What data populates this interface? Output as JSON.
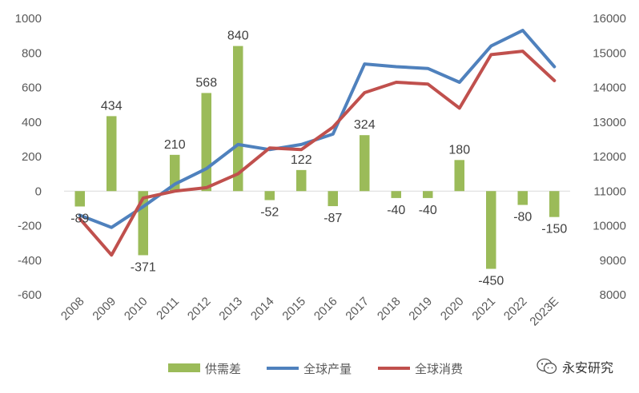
{
  "chart_data": {
    "type": "bar+line",
    "categories": [
      "2008",
      "2009",
      "2010",
      "2011",
      "2012",
      "2013",
      "2014",
      "2015",
      "2016",
      "2017",
      "2018",
      "2019",
      "2020",
      "2021",
      "2022",
      "2023E"
    ],
    "bar_series": {
      "name": "供需差",
      "axis": "left",
      "values": [
        -89,
        434,
        -371,
        210,
        568,
        840,
        -52,
        122,
        -87,
        324,
        -40,
        -40,
        180,
        -450,
        -80,
        -150
      ],
      "color": "#9BBB59"
    },
    "line_series": [
      {
        "name": "全球产量",
        "axis": "right",
        "color": "#4F81BD",
        "values": [
          10300,
          9950,
          10550,
          11200,
          11650,
          12350,
          12200,
          12350,
          12650,
          14680,
          14600,
          14550,
          14150,
          15200,
          15650,
          14600
        ]
      },
      {
        "name": "全球消费",
        "axis": "right",
        "color": "#C0504D",
        "values": [
          10200,
          9150,
          10800,
          11000,
          11100,
          11500,
          12250,
          12200,
          12850,
          13850,
          14150,
          14100,
          13400,
          14950,
          15050,
          14200
        ]
      }
    ],
    "left_axis": {
      "min": -600,
      "max": 1000,
      "step": 200,
      "ticks": [
        "1000",
        "800",
        "600",
        "400",
        "200",
        "0",
        "-200",
        "-400",
        "-600"
      ]
    },
    "right_axis": {
      "min": 8000,
      "max": 16000,
      "step": 1000,
      "ticks": [
        "16000",
        "15000",
        "14000",
        "13000",
        "12000",
        "11000",
        "10000",
        "9000",
        "8000"
      ]
    },
    "data_labels": [
      "-89",
      "434",
      "-371",
      "210",
      "568",
      "840",
      "-52",
      "122",
      "-87",
      "324",
      "-40",
      "-40",
      "180",
      "-450",
      "-80",
      "-150"
    ],
    "legend": {
      "position": "bottom",
      "items": [
        {
          "label": "供需差",
          "color": "#9BBB59",
          "kind": "bar"
        },
        {
          "label": "全球产量",
          "color": "#4F81BD",
          "kind": "line"
        },
        {
          "label": "全球消费",
          "color": "#C0504D",
          "kind": "line"
        }
      ]
    },
    "grid": false
  },
  "watermark": {
    "text": "永安研究",
    "icon": "wechat-icon"
  }
}
